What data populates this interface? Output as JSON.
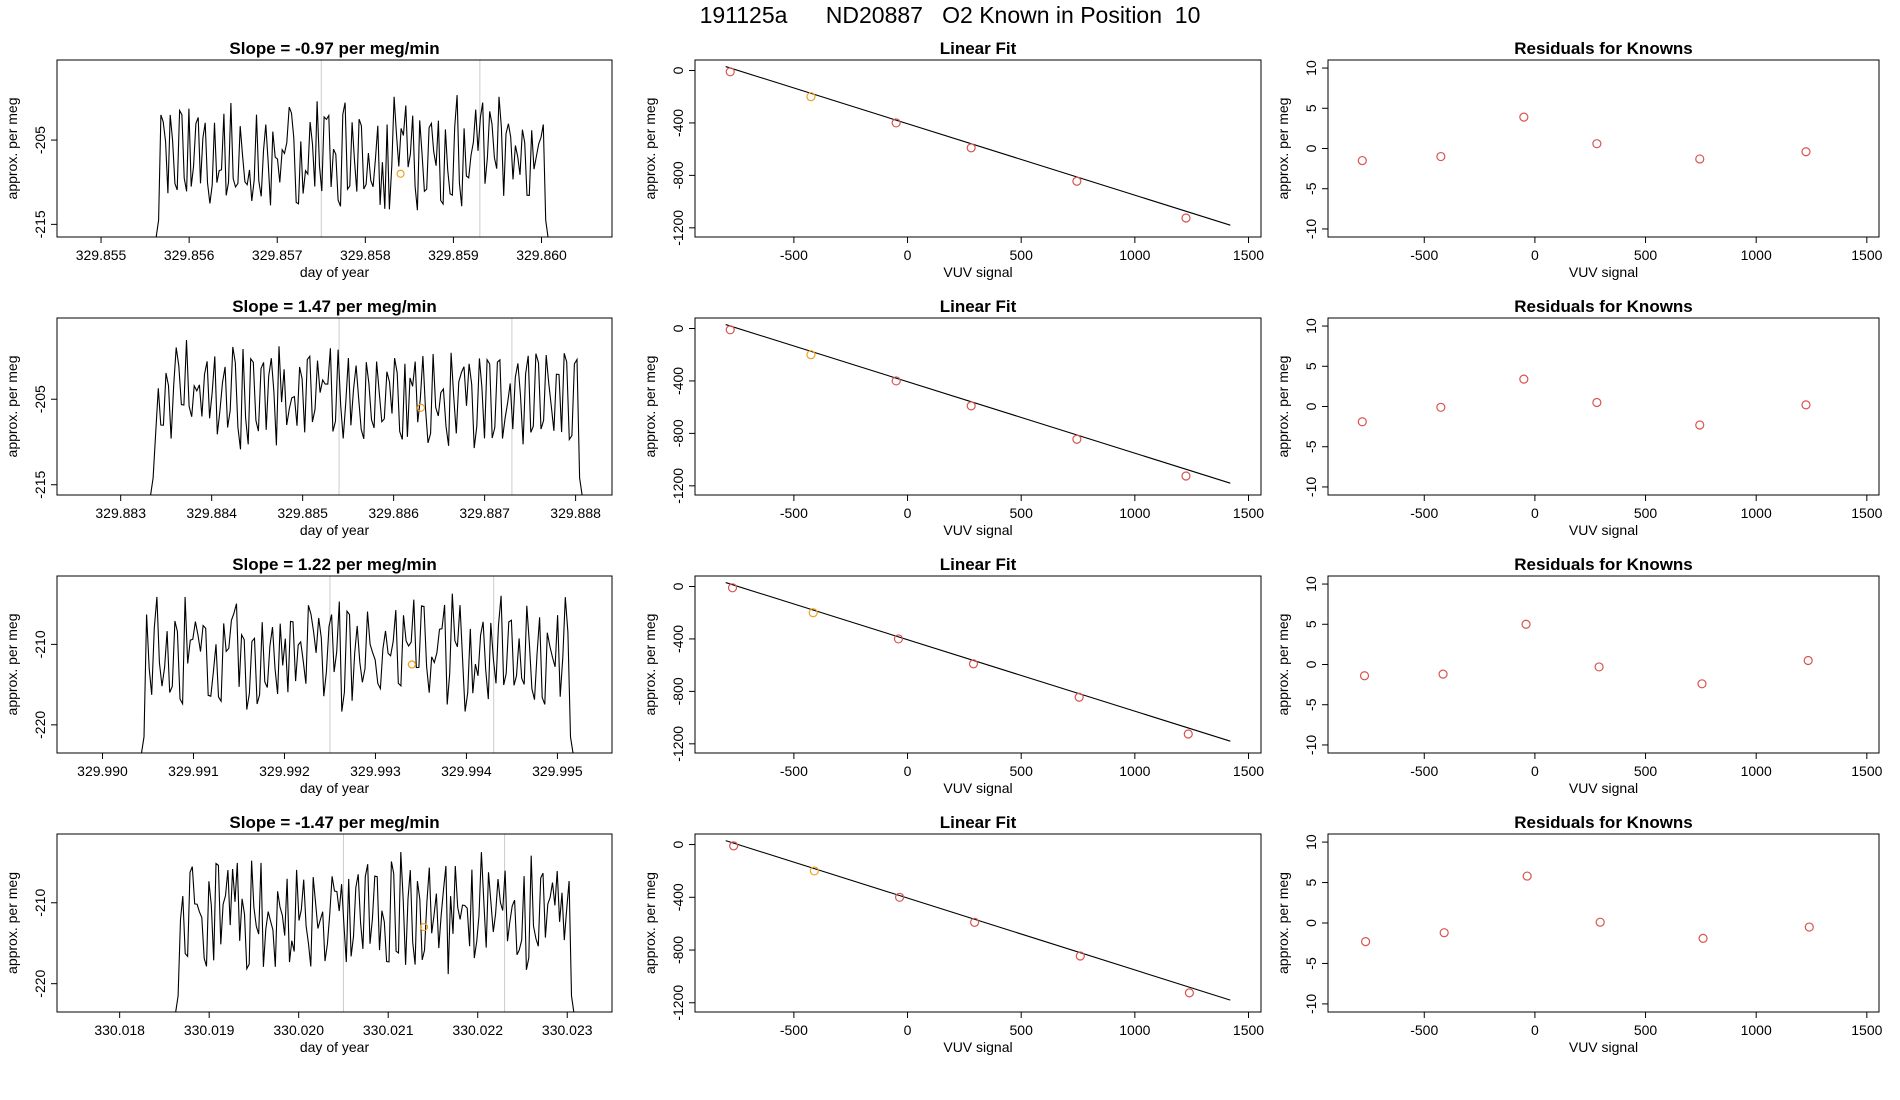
{
  "main_title": "191125a      ND20887   O2 Known in Position  10",
  "colors": {
    "trace": "#000000",
    "known_point": "#d9534f",
    "selected_point": "#f0a020",
    "fit_line": "#000000",
    "marker_line": "#cccccc"
  },
  "chart_data": [
    {
      "type": "line",
      "panel": "timeseries",
      "row": 0,
      "title": "Slope =  -0.97  per meg/min",
      "xlabel": "day of year",
      "ylabel": "approx. per meg",
      "xlim": [
        329.8545,
        329.8608
      ],
      "ylim": [
        -216.5,
        -195.5
      ],
      "xticks": [
        "329.855",
        "329.856",
        "329.857",
        "329.858",
        "329.859",
        "329.860"
      ],
      "xtick_values": [
        329.855,
        329.856,
        329.857,
        329.858,
        329.859,
        329.86
      ],
      "yticks": [
        "-215",
        "-205"
      ],
      "ytick_values": [
        -215,
        -205
      ],
      "markers": [
        329.8575,
        329.8593
      ],
      "highlight": {
        "x": 329.8584,
        "y": -209
      },
      "trace": {
        "start": 329.8556,
        "end": 329.8601,
        "low": -213.8,
        "high": -199.6,
        "seed": 11
      }
    },
    {
      "type": "scatter",
      "panel": "fit",
      "row": 0,
      "title": "Linear Fit",
      "xlabel": "VUV signal",
      "ylabel": "approx. per meg",
      "xlim": [
        -935,
        1555
      ],
      "ylim": [
        -1270,
        80
      ],
      "xticks": [
        "-500",
        "0",
        "500",
        "1000",
        "1500"
      ],
      "xtick_values": [
        -500,
        0,
        500,
        1000,
        1500
      ],
      "yticks": [
        "0",
        "-400",
        "-800",
        "-1200"
      ],
      "ytick_values": [
        0,
        -400,
        -800,
        -1200
      ],
      "fit": {
        "x": [
          -800,
          1420
        ],
        "y": [
          30,
          -1180
        ]
      },
      "points": {
        "x": [
          -780,
          -425,
          -50,
          280,
          745,
          1225
        ],
        "y": [
          -10,
          -200,
          -400,
          -590,
          -845,
          -1125
        ],
        "highlight_index": 1
      }
    },
    {
      "type": "scatter",
      "panel": "residuals",
      "row": 0,
      "title": "Residuals for Knowns",
      "xlabel": "VUV signal",
      "ylabel": "approx. per meg",
      "xlim": [
        -935,
        1555
      ],
      "ylim": [
        -11,
        11
      ],
      "xticks": [
        "-500",
        "0",
        "500",
        "1000",
        "1500"
      ],
      "xtick_values": [
        -500,
        0,
        500,
        1000,
        1500
      ],
      "yticks": [
        "10",
        "5",
        "0",
        "-5",
        "-10"
      ],
      "ytick_values": [
        10,
        5,
        0,
        -5,
        -10
      ],
      "points": {
        "x": [
          -780,
          -425,
          -50,
          280,
          745,
          1225
        ],
        "y": [
          -1.5,
          -1.0,
          3.9,
          0.6,
          -1.3,
          -0.4
        ]
      }
    },
    {
      "type": "line",
      "panel": "timeseries",
      "row": 1,
      "title": "Slope =  1.47  per meg/min",
      "xlabel": "day of year",
      "ylabel": "approx. per meg",
      "xlim": [
        329.8823,
        329.8884
      ],
      "ylim": [
        -216.2,
        -195.5
      ],
      "xticks": [
        "329.883",
        "329.884",
        "329.885",
        "329.886",
        "329.887",
        "329.888"
      ],
      "xtick_values": [
        329.883,
        329.884,
        329.885,
        329.886,
        329.887,
        329.888
      ],
      "yticks": [
        "-215",
        "-205"
      ],
      "ytick_values": [
        -215,
        -205
      ],
      "markers": [
        329.8854,
        329.8873
      ],
      "highlight": {
        "x": 329.8863,
        "y": -206
      },
      "trace": {
        "start": 329.8833,
        "end": 329.8881,
        "low": -211.0,
        "high": -197.5,
        "seed": 23
      }
    },
    {
      "type": "scatter",
      "panel": "fit",
      "row": 1,
      "title": "Linear Fit",
      "xlabel": "VUV signal",
      "ylabel": "approx. per meg",
      "xlim": [
        -935,
        1555
      ],
      "ylim": [
        -1270,
        80
      ],
      "xticks": [
        "-500",
        "0",
        "500",
        "1000",
        "1500"
      ],
      "xtick_values": [
        -500,
        0,
        500,
        1000,
        1500
      ],
      "yticks": [
        "0",
        "-400",
        "-800",
        "-1200"
      ],
      "ytick_values": [
        0,
        -400,
        -800,
        -1200
      ],
      "fit": {
        "x": [
          -800,
          1420
        ],
        "y": [
          30,
          -1180
        ]
      },
      "points": {
        "x": [
          -780,
          -425,
          -50,
          280,
          745,
          1225
        ],
        "y": [
          -10,
          -200,
          -400,
          -590,
          -845,
          -1125
        ],
        "highlight_index": 1
      }
    },
    {
      "type": "scatter",
      "panel": "residuals",
      "row": 1,
      "title": "Residuals for Knowns",
      "xlabel": "VUV signal",
      "ylabel": "approx. per meg",
      "xlim": [
        -935,
        1555
      ],
      "ylim": [
        -11,
        11
      ],
      "xticks": [
        "-500",
        "0",
        "500",
        "1000",
        "1500"
      ],
      "xtick_values": [
        -500,
        0,
        500,
        1000,
        1500
      ],
      "yticks": [
        "10",
        "5",
        "0",
        "-5",
        "-10"
      ],
      "ytick_values": [
        10,
        5,
        0,
        -5,
        -10
      ],
      "points": {
        "x": [
          -780,
          -425,
          -50,
          280,
          745,
          1225
        ],
        "y": [
          -1.9,
          -0.1,
          3.4,
          0.5,
          -2.3,
          0.2
        ]
      }
    },
    {
      "type": "line",
      "panel": "timeseries",
      "row": 2,
      "title": "Slope =  1.22  per meg/min",
      "xlabel": "day of year",
      "ylabel": "approx. per meg",
      "xlim": [
        329.9895,
        329.9956
      ],
      "ylim": [
        -223.5,
        -201.5
      ],
      "xticks": [
        "329.990",
        "329.991",
        "329.992",
        "329.993",
        "329.994",
        "329.995"
      ],
      "xtick_values": [
        329.99,
        329.991,
        329.992,
        329.993,
        329.994,
        329.995
      ],
      "yticks": [
        "-220",
        "-210"
      ],
      "ytick_values": [
        -220,
        -210
      ],
      "markers": [
        329.9925,
        329.9943
      ],
      "highlight": {
        "x": 329.9934,
        "y": -212.5
      },
      "trace": {
        "start": 329.9904,
        "end": 329.9952,
        "low": -218.5,
        "high": -203.5,
        "seed": 37
      }
    },
    {
      "type": "scatter",
      "panel": "fit",
      "row": 2,
      "title": "Linear Fit",
      "xlabel": "VUV signal",
      "ylabel": "approx. per meg",
      "xlim": [
        -935,
        1555
      ],
      "ylim": [
        -1270,
        80
      ],
      "xticks": [
        "-500",
        "0",
        "500",
        "1000",
        "1500"
      ],
      "xtick_values": [
        -500,
        0,
        500,
        1000,
        1500
      ],
      "yticks": [
        "0",
        "-400",
        "-800",
        "-1200"
      ],
      "ytick_values": [
        0,
        -400,
        -800,
        -1200
      ],
      "fit": {
        "x": [
          -800,
          1420
        ],
        "y": [
          30,
          -1180
        ]
      },
      "points": {
        "x": [
          -770,
          -415,
          -40,
          290,
          755,
          1235
        ],
        "y": [
          -10,
          -200,
          -400,
          -590,
          -845,
          -1125
        ],
        "highlight_index": 1
      }
    },
    {
      "type": "scatter",
      "panel": "residuals",
      "row": 2,
      "title": "Residuals for Knowns",
      "xlabel": "VUV signal",
      "ylabel": "approx. per meg",
      "xlim": [
        -935,
        1555
      ],
      "ylim": [
        -11,
        11
      ],
      "xticks": [
        "-500",
        "0",
        "500",
        "1000",
        "1500"
      ],
      "xtick_values": [
        -500,
        0,
        500,
        1000,
        1500
      ],
      "points": {
        "x": [
          -770,
          -415,
          -40,
          290,
          755,
          1235
        ],
        "y": [
          -1.4,
          -1.2,
          5.0,
          -0.3,
          -2.4,
          0.5
        ]
      },
      "yticks": [
        "10",
        "5",
        "0",
        "-5",
        "-10"
      ],
      "ytick_values": [
        10,
        5,
        0,
        -5,
        -10
      ]
    },
    {
      "type": "line",
      "panel": "timeseries",
      "row": 3,
      "title": "Slope =  -1.47  per meg/min",
      "xlabel": "day of year",
      "ylabel": "approx. per meg",
      "xlim": [
        330.0173,
        330.0235
      ],
      "ylim": [
        -223.5,
        -201.5
      ],
      "xticks": [
        "330.018",
        "330.019",
        "330.020",
        "330.021",
        "330.022",
        "330.023"
      ],
      "xtick_values": [
        330.018,
        330.019,
        330.02,
        330.021,
        330.022,
        330.023
      ],
      "yticks": [
        "-220",
        "-210"
      ],
      "ytick_values": [
        -220,
        -210
      ],
      "markers": [
        330.0205,
        330.0223
      ],
      "highlight": {
        "x": 330.0214,
        "y": -213
      },
      "trace": {
        "start": 330.0186,
        "end": 330.0231,
        "low": -219.0,
        "high": -203.5,
        "seed": 53
      }
    },
    {
      "type": "scatter",
      "panel": "fit",
      "row": 3,
      "title": "Linear Fit",
      "xlabel": "VUV signal",
      "ylabel": "approx. per meg",
      "xlim": [
        -935,
        1555
      ],
      "ylim": [
        -1270,
        80
      ],
      "xticks": [
        "-500",
        "0",
        "500",
        "1000",
        "1500"
      ],
      "xtick_values": [
        -500,
        0,
        500,
        1000,
        1500
      ],
      "yticks": [
        "0",
        "-400",
        "-800",
        "-1200"
      ],
      "ytick_values": [
        0,
        -400,
        -800,
        -1200
      ],
      "fit": {
        "x": [
          -800,
          1420
        ],
        "y": [
          30,
          -1180
        ]
      },
      "points": {
        "x": [
          -765,
          -410,
          -35,
          295,
          760,
          1240
        ],
        "y": [
          -10,
          -200,
          -400,
          -590,
          -845,
          -1125
        ],
        "highlight_index": 1
      }
    },
    {
      "type": "scatter",
      "panel": "residuals",
      "row": 3,
      "title": "Residuals for Knowns",
      "xlabel": "VUV signal",
      "ylabel": "approx. per meg",
      "xlim": [
        -935,
        1555
      ],
      "ylim": [
        -11,
        11
      ],
      "xticks": [
        "-500",
        "0",
        "500",
        "1000",
        "1500"
      ],
      "xtick_values": [
        -500,
        0,
        500,
        1000,
        1500
      ],
      "yticks": [
        "10",
        "5",
        "0",
        "-5",
        "-10"
      ],
      "ytick_values": [
        10,
        5,
        0,
        -5,
        -10
      ],
      "points": {
        "x": [
          -765,
          -410,
          -35,
          295,
          760,
          1240
        ],
        "y": [
          -2.3,
          -1.2,
          5.8,
          0.1,
          -1.9,
          -0.5
        ]
      }
    }
  ]
}
